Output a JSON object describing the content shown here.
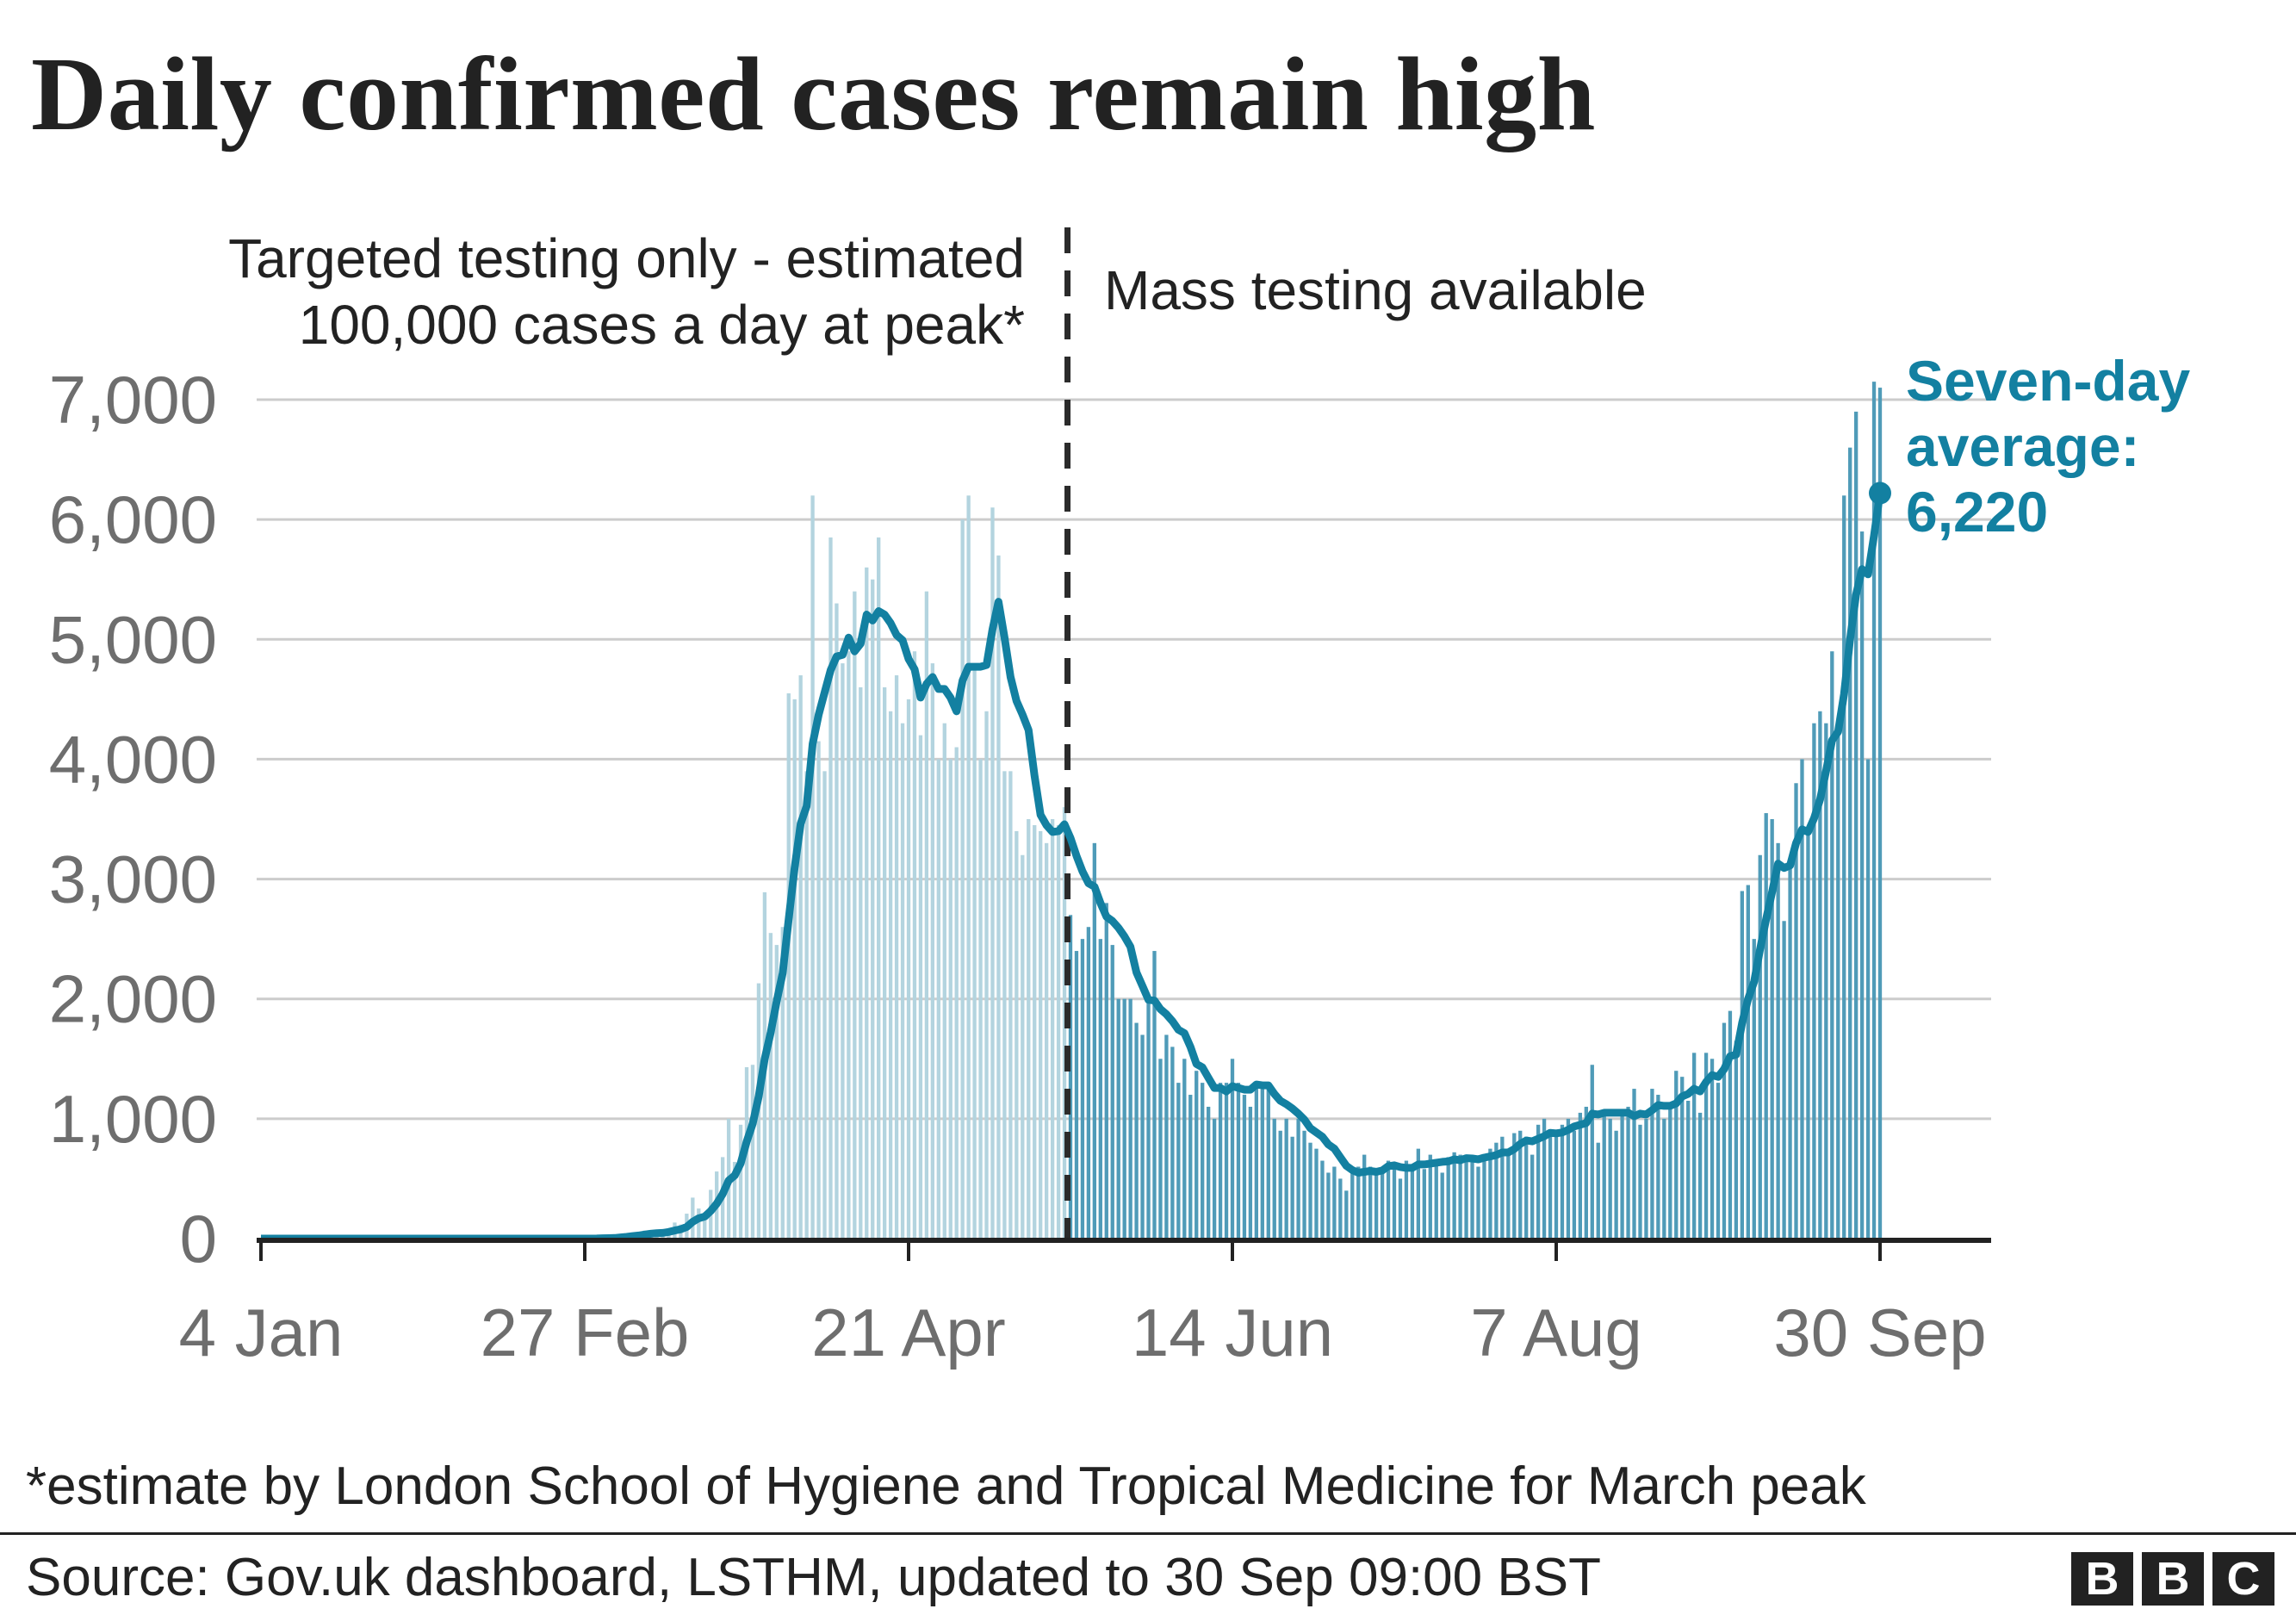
{
  "chart_data": {
    "type": "bar",
    "title": "Daily confirmed cases remain high",
    "x_tick_labels": [
      "4 Jan",
      "27 Feb",
      "21 Apr",
      "14 Jun",
      "7 Aug",
      "30 Sep"
    ],
    "y_tick_labels": [
      "0",
      "1,000",
      "2,000",
      "3,000",
      "4,000",
      "5,000",
      "6,000",
      "7,000"
    ],
    "ylim": [
      0,
      7000
    ],
    "grid": true,
    "annotations": {
      "left_line1": "Targeted testing only - estimated",
      "left_line2": "100,000 cases a day at peak*",
      "right": "Mass testing available",
      "divider_date": "17 May"
    },
    "series": [
      {
        "name": "Daily confirmed cases",
        "type": "bar",
        "color_before_divider": "#b3d4df",
        "color_after_divider": "#4f9bb8",
        "values": [
          0,
          0,
          0,
          0,
          0,
          0,
          0,
          0,
          0,
          0,
          0,
          0,
          0,
          0,
          0,
          0,
          0,
          0,
          0,
          0,
          0,
          0,
          0,
          0,
          0,
          0,
          0,
          0,
          0,
          0,
          0,
          0,
          0,
          0,
          0,
          0,
          0,
          0,
          0,
          0,
          0,
          0,
          0,
          0,
          0,
          0,
          0,
          0,
          0,
          0,
          0,
          0,
          0,
          0,
          0,
          2,
          5,
          13,
          4,
          11,
          34,
          30,
          48,
          43,
          67,
          48,
          46,
          50,
          83,
          134,
          117,
          208,
          342,
          251,
          152,
          407,
          560,
          680,
          1000,
          640,
          950,
          1430,
          1450,
          2130,
          2890,
          2550,
          2450,
          2600,
          4550,
          4500,
          4700,
          3900,
          6200,
          4150,
          3900,
          5850,
          5300,
          4800,
          4900,
          5400,
          4600,
          5600,
          5500,
          5850,
          4600,
          4400,
          4700,
          4300,
          4500,
          4900,
          4200,
          5400,
          4800,
          4000,
          4300,
          4000,
          4100,
          6000,
          6200,
          4800,
          4000,
          4400,
          6100,
          5700,
          3900,
          3900,
          3400,
          3200,
          3500,
          3450,
          3400,
          3300,
          3500,
          3450,
          3600,
          2700,
          2400,
          2500,
          2600,
          3300,
          2500,
          2800,
          2450,
          2000,
          2000,
          2000,
          1800,
          1700,
          2000,
          2400,
          1500,
          1700,
          1600,
          1300,
          1500,
          1200,
          1400,
          1300,
          1100,
          1000,
          1300,
          1300,
          1500,
          1300,
          1200,
          1100,
          1300,
          1250,
          1300,
          1000,
          900,
          1000,
          850,
          1000,
          900,
          800,
          750,
          650,
          550,
          600,
          500,
          400,
          550,
          600,
          700,
          600,
          550,
          580,
          650,
          600,
          500,
          650,
          600,
          750,
          580,
          700,
          650,
          550,
          680,
          720,
          700,
          700,
          680,
          600,
          650,
          750,
          800,
          850,
          700,
          880,
          900,
          850,
          700,
          950,
          1000,
          900,
          850,
          950,
          1000,
          900,
          1050,
          1100,
          1450,
          800,
          1050,
          1000,
          900,
          1050,
          1100,
          1250,
          950,
          1000,
          1250,
          1200,
          1000,
          1100,
          1400,
          1350,
          1150,
          1550,
          1050,
          1550,
          1500,
          1300,
          1800,
          1900,
          1650,
          2900,
          2950,
          2500,
          3200,
          3550,
          3500,
          3300,
          2650,
          3100,
          3800,
          4000,
          3400,
          4300,
          4400,
          4300,
          4900,
          4300,
          6200,
          6600,
          6900,
          5900,
          4000,
          7150,
          7100
        ]
      },
      {
        "name": "Seven-day average",
        "type": "line",
        "color": "#1380a1",
        "final_value": 6220
      }
    ],
    "avg_label": {
      "line1": "Seven-day",
      "line2": "average:",
      "line3": "6,220"
    }
  },
  "footnote": "*estimate by London School of Hygiene and Tropical Medicine for March peak",
  "source": "Source: Gov.uk dashboard, LSTHM, updated to 30 Sep 09:00 BST",
  "logo": {
    "letters": [
      "B",
      "B",
      "C"
    ]
  }
}
